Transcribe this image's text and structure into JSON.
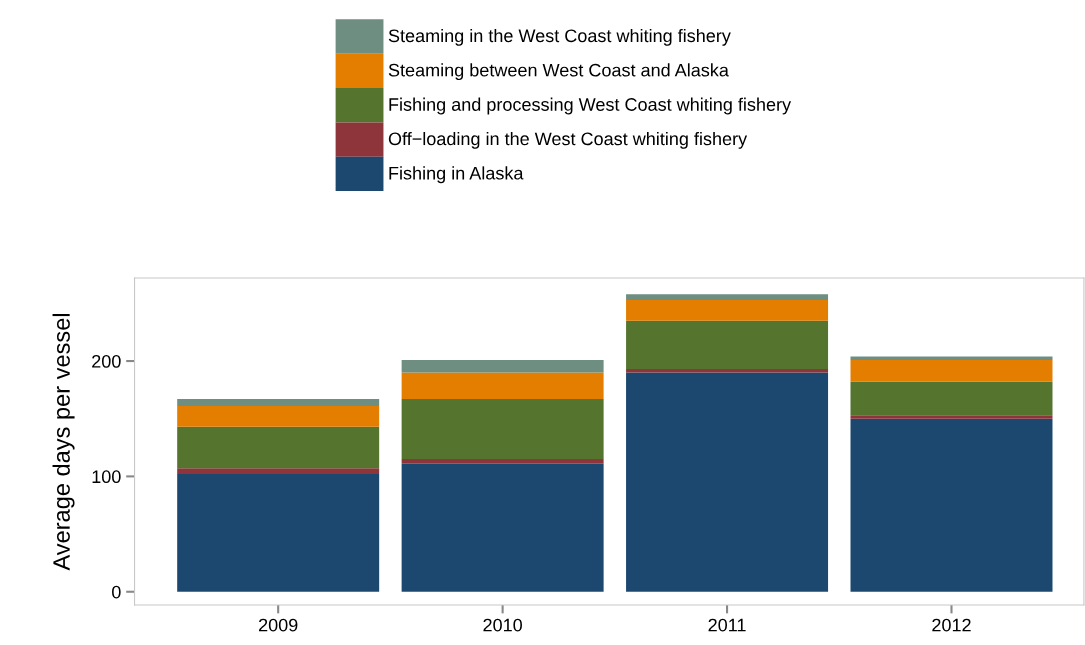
{
  "chart_data": {
    "type": "bar",
    "stacked": true,
    "ylabel": "Average days per vessel",
    "categories": [
      "2009",
      "2010",
      "2011",
      "2012"
    ],
    "series": [
      {
        "name": "Fishing in Alaska",
        "color": "#1c4870",
        "values": [
          102,
          111,
          190,
          150
        ]
      },
      {
        "name": "Off−loading in the West Coast whiting fishery",
        "color": "#8e353b",
        "values": [
          5,
          4,
          3,
          3
        ]
      },
      {
        "name": "Fishing and processing West Coast whiting fishery",
        "color": "#55752f",
        "values": [
          36,
          52,
          42,
          29
        ]
      },
      {
        "name": "Steaming between West Coast and Alaska",
        "color": "#e37e00",
        "values": [
          18,
          23,
          18,
          19
        ]
      },
      {
        "name": "Steaming in the West Coast whiting fishery",
        "color": "#6e8e81",
        "values": [
          6,
          11,
          5,
          3
        ]
      }
    ],
    "ylim": [
      -11.5,
      272
    ],
    "yticks": [
      0,
      100,
      200
    ],
    "grid": false,
    "legend": "top"
  }
}
